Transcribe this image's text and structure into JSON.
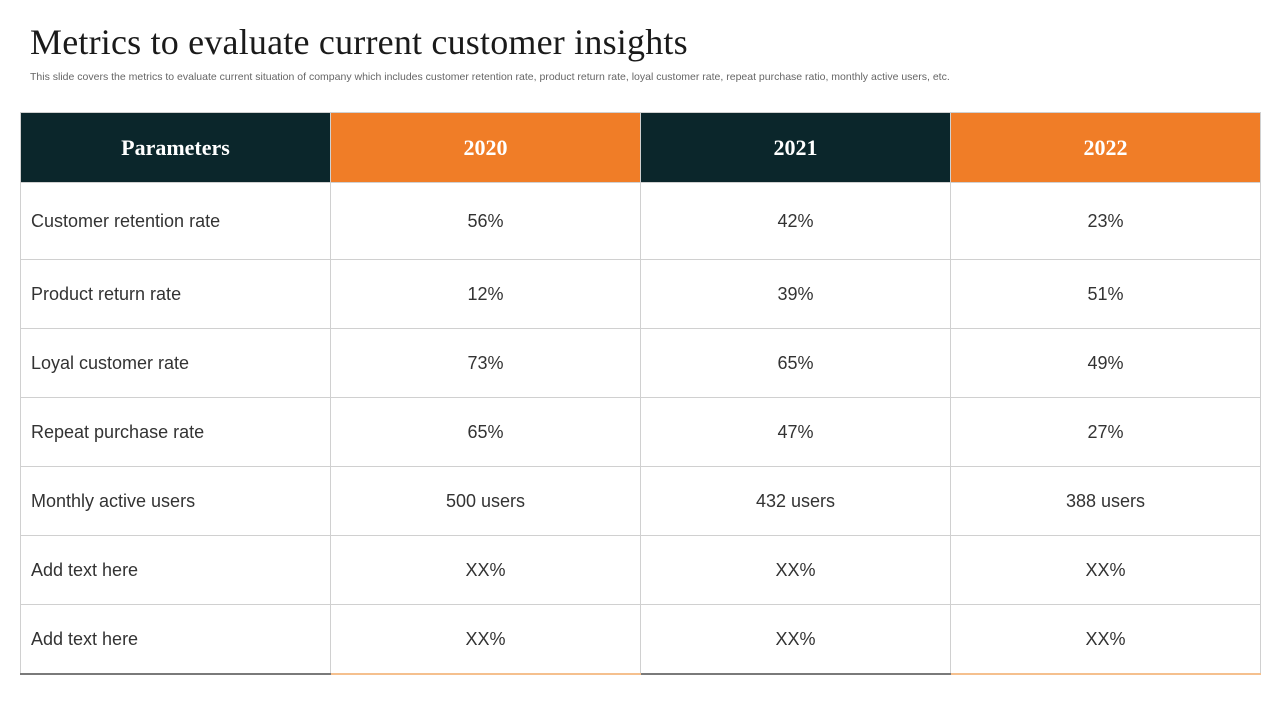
{
  "slide": {
    "title": "Metrics to evaluate current customer insights",
    "subtitle": "This slide covers the metrics to evaluate current situation of company which includes customer retention rate, product return rate, loyal customer rate, repeat purchase ratio, monthly active users, etc."
  },
  "colors": {
    "header_dark": "#0b262b",
    "header_orange": "#f07d27"
  },
  "table": {
    "headers": [
      "Parameters",
      "2020",
      "2021",
      "2022"
    ],
    "rows": [
      [
        "Customer retention rate",
        "56%",
        "42%",
        "23%"
      ],
      [
        "Product return rate",
        "12%",
        "39%",
        "51%"
      ],
      [
        "Loyal customer rate",
        "73%",
        "65%",
        "49%"
      ],
      [
        "Repeat purchase rate",
        "65%",
        "47%",
        "27%"
      ],
      [
        "Monthly active users",
        "500 users",
        "432 users",
        "388 users"
      ],
      [
        "Add text here",
        "XX%",
        "XX%",
        "XX%"
      ],
      [
        "Add text here",
        "XX%",
        "XX%",
        "XX%"
      ]
    ]
  }
}
